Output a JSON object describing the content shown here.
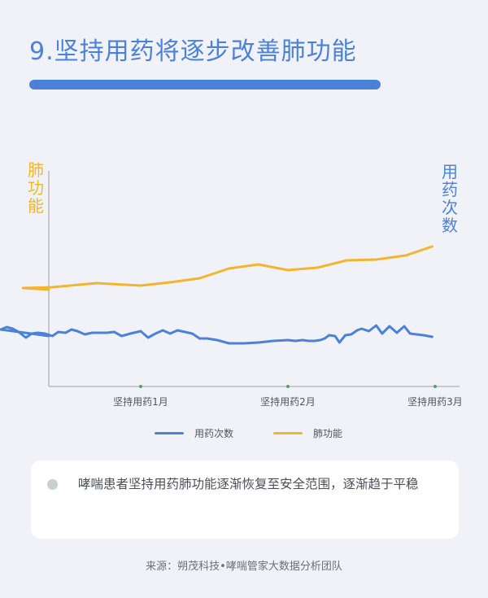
{
  "header": {
    "title": "9.坚持用药将逐步改善肺功能"
  },
  "chart_data": {
    "type": "line",
    "x": [
      "坚持用药1月",
      "坚持用药2月",
      "坚持用药3月"
    ],
    "xlabel": "",
    "ylabel_left": "肺功能",
    "ylabel_right": "用药次数",
    "grid": false,
    "legend_position": "bottom",
    "series": [
      {
        "name": "用药次数",
        "color": "#4b82d8",
        "axis": "right",
        "points": [
          [
            0,
            413
          ],
          [
            0.05,
            405
          ],
          [
            0.09,
            402
          ],
          [
            0.13,
            404
          ],
          [
            0.17,
            408
          ],
          [
            0.22,
            415
          ],
          [
            0.26,
            410
          ],
          [
            0.3,
            409
          ],
          [
            0.35,
            410
          ],
          [
            0.4,
            413
          ],
          [
            0.44,
            408
          ],
          [
            0.49,
            409
          ],
          [
            0.53,
            405
          ],
          [
            0.57,
            407
          ],
          [
            0.62,
            411
          ],
          [
            0.67,
            409
          ],
          [
            0.72,
            409
          ],
          [
            0.77,
            409
          ],
          [
            0.82,
            408
          ],
          [
            0.87,
            413
          ],
          [
            0.93,
            410
          ],
          [
            1.0,
            407
          ],
          [
            1.05,
            415
          ],
          [
            1.1,
            410
          ],
          [
            1.15,
            406
          ],
          [
            1.2,
            410
          ],
          [
            1.25,
            406
          ],
          [
            1.3,
            408
          ],
          [
            1.35,
            410
          ],
          [
            1.4,
            416
          ],
          [
            1.45,
            416
          ],
          [
            1.52,
            418
          ],
          [
            1.6,
            422
          ],
          [
            1.7,
            422
          ],
          [
            1.8,
            421
          ],
          [
            1.9,
            419
          ],
          [
            2.0,
            418
          ],
          [
            2.05,
            419
          ],
          [
            2.1,
            418
          ],
          [
            2.14,
            419
          ],
          [
            2.18,
            419
          ],
          [
            2.22,
            418
          ],
          [
            2.25,
            416
          ],
          [
            2.28,
            412
          ],
          [
            2.32,
            413
          ],
          [
            2.35,
            421
          ],
          [
            2.39,
            412
          ],
          [
            2.43,
            411
          ],
          [
            2.47,
            406
          ],
          [
            2.5,
            404
          ],
          [
            2.55,
            407
          ],
          [
            2.6,
            400
          ],
          [
            2.64,
            410
          ],
          [
            2.69,
            401
          ],
          [
            2.74,
            409
          ],
          [
            2.79,
            401
          ],
          [
            2.83,
            410
          ],
          [
            2.92,
            412
          ],
          [
            2.98,
            414
          ]
        ]
      },
      {
        "name": "肺功能",
        "color": "#f2b530",
        "axis": "left",
        "points": [
          [
            0,
            356
          ],
          [
            0.2,
            354
          ],
          [
            0.4,
            353
          ],
          [
            0.7,
            348
          ],
          [
            1.0,
            351
          ],
          [
            1.2,
            347
          ],
          [
            1.4,
            342
          ],
          [
            1.6,
            330
          ],
          [
            1.8,
            325
          ],
          [
            2.0,
            332
          ],
          [
            2.2,
            329
          ],
          [
            2.4,
            320
          ],
          [
            2.6,
            319
          ],
          [
            2.8,
            314
          ],
          [
            2.98,
            303
          ]
        ]
      }
    ]
  },
  "callout": {
    "text": "哮喘患者坚持用药肺功能逐渐恢复至安全范围，逐渐趋于平稳"
  },
  "footer": {
    "source": "来源：朔茂科技•哮喘管家大数据分析团队"
  }
}
